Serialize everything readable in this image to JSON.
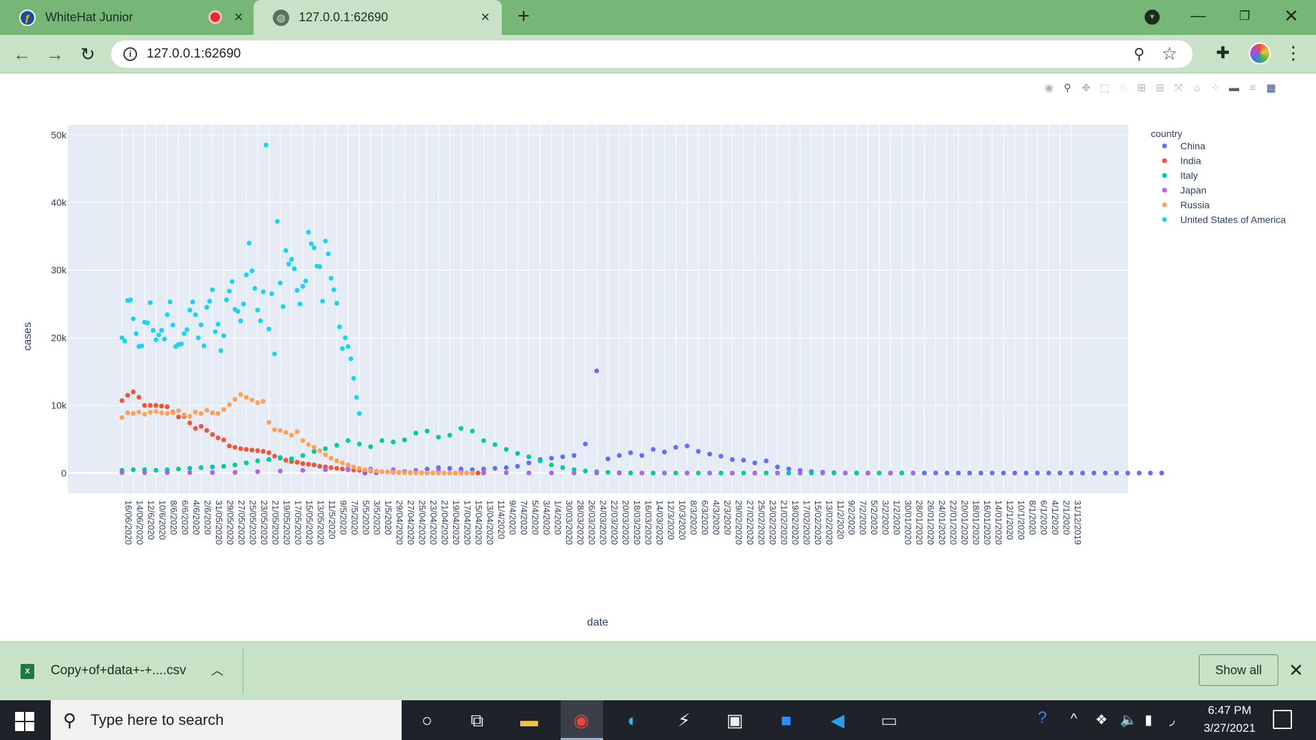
{
  "browser": {
    "tabs": [
      {
        "title": "WhiteHat Junior",
        "favicon": "whitehat-logo-icon",
        "recording": true
      },
      {
        "title": "127.0.0.1:62690",
        "favicon": "globe-icon",
        "active": true
      }
    ],
    "url": "127.0.0.1:62690"
  },
  "download": {
    "file_name": "Copy+of+data+-+....csv",
    "file_icon_text": "X",
    "show_all_label": "Show all"
  },
  "taskbar": {
    "search_placeholder": "Type here to search",
    "time": "6:47 PM",
    "date": "3/27/2021",
    "apps": [
      "cortana-icon",
      "task-view-icon",
      "file-explorer-icon",
      "chrome-icon",
      "edge-icon",
      "app-icon",
      "microsoft-store-icon",
      "zoom-icon",
      "vscode-icon",
      "terminal-icon"
    ]
  },
  "chart_data": {
    "type": "scatter",
    "title": "",
    "xlabel": "date",
    "ylabel": "cases",
    "ylim": [
      -3000,
      51500
    ],
    "yticks": [
      0,
      10000,
      20000,
      30000,
      40000,
      50000
    ],
    "ytick_labels": [
      "0",
      "10k",
      "20k",
      "30k",
      "40k",
      "50k"
    ],
    "legend_title": "country",
    "legend_position": "right",
    "grid": true,
    "background": "#e5ecf6",
    "x_tick_labels": [
      "16/06/2020",
      "14/06/2020",
      "12/6/2020",
      "10/6/2020",
      "8/6/2020",
      "6/6/2020",
      "4/6/2020",
      "2/6/2020",
      "31/05/2020",
      "29/05/2020",
      "27/05/2020",
      "25/05/2020",
      "23/05/2020",
      "21/05/2020",
      "19/05/2020",
      "17/05/2020",
      "15/05/2020",
      "13/05/2020",
      "11/5/2020",
      "9/5/2020",
      "7/5/2020",
      "5/5/2020",
      "3/5/2020",
      "1/5/2020",
      "29/04/2020",
      "27/04/2020",
      "25/04/2020",
      "23/04/2020",
      "21/04/2020",
      "19/04/2020",
      "17/04/2020",
      "15/04/2020",
      "13/04/2020",
      "11/4/2020",
      "9/4/2020",
      "7/4/2020",
      "5/4/2020",
      "3/4/2020",
      "1/4/2020",
      "30/03/2020",
      "28/03/2020",
      "26/03/2020",
      "24/03/2020",
      "22/03/2020",
      "20/03/2020",
      "18/03/2020",
      "16/03/2020",
      "14/03/2020",
      "12/3/2020",
      "10/3/2020",
      "8/3/2020",
      "6/3/2020",
      "4/3/2020",
      "2/3/2020",
      "29/02/2020",
      "27/02/2020",
      "25/02/2020",
      "23/02/2020",
      "21/02/2020",
      "19/02/2020",
      "17/02/2020",
      "15/02/2020",
      "13/02/2020",
      "11/2/2020",
      "9/2/2020",
      "7/2/2020",
      "5/2/2020",
      "3/2/2020",
      "1/2/2020",
      "30/01/2020",
      "28/01/2020",
      "26/01/2020",
      "24/01/2020",
      "22/01/2020",
      "20/01/2020",
      "18/01/2020",
      "16/01/2020",
      "14/01/2020",
      "12/1/2020",
      "10/1/2020",
      "8/1/2020",
      "6/1/2020",
      "4/1/2020",
      "2/1/2020",
      "31/12/2019"
    ],
    "series": [
      {
        "name": "China",
        "color": "#636efa",
        "x": [
          86,
          90,
          96,
          100,
          104,
          108,
          112,
          116,
          120,
          124,
          128,
          132,
          136,
          140,
          144,
          148,
          152,
          156,
          160,
          164,
          168,
          172,
          176,
          180,
          184,
          188,
          192,
          196,
          200,
          204,
          208,
          212,
          216,
          220,
          224,
          228,
          232,
          236,
          240,
          244,
          248,
          252,
          256,
          260,
          264,
          268,
          272,
          276,
          280,
          284,
          288,
          292,
          296,
          300,
          304,
          308,
          312,
          316,
          320,
          324,
          328,
          332,
          336,
          340,
          344,
          348,
          352,
          356,
          360,
          364,
          368
        ],
        "y": [
          0,
          50,
          100,
          200,
          400,
          600,
          800,
          700,
          600,
          500,
          600,
          700,
          800,
          1000,
          1500,
          2000,
          2200,
          2400,
          2600,
          4300,
          15100,
          2100,
          2600,
          3000,
          2600,
          3500,
          3100,
          3800,
          4000,
          3200,
          2800,
          2500,
          2000,
          1900,
          1500,
          1800,
          900,
          600,
          400,
          200,
          100,
          50,
          20,
          0,
          0,
          0,
          0,
          0,
          0,
          0,
          0,
          0,
          0,
          0,
          0,
          0,
          0,
          0,
          0,
          0,
          0,
          0,
          0,
          0,
          0,
          0,
          0,
          0,
          0,
          0,
          0
        ]
      },
      {
        "name": "India",
        "color": "#ef553b",
        "x": [
          0,
          2,
          4,
          6,
          8,
          10,
          12,
          14,
          16,
          18,
          20,
          22,
          24,
          26,
          28,
          30,
          32,
          34,
          36,
          38,
          40,
          42,
          44,
          46,
          48,
          50,
          52,
          54,
          56,
          58,
          60,
          62,
          64,
          66,
          68,
          70,
          72,
          74,
          76,
          78,
          80,
          82,
          84,
          86,
          88,
          90,
          92,
          94,
          96,
          98,
          100,
          102,
          104,
          106,
          108,
          110,
          112,
          114,
          116,
          118,
          120,
          122,
          124,
          126,
          128
        ],
        "y": [
          10700,
          11500,
          12000,
          11200,
          10000,
          10000,
          10000,
          9900,
          9800,
          9000,
          8300,
          8400,
          7400,
          6600,
          6900,
          6300,
          5700,
          5200,
          4900,
          4000,
          3800,
          3600,
          3500,
          3400,
          3300,
          3200,
          3000,
          2500,
          2200,
          1900,
          1700,
          1600,
          1400,
          1300,
          1200,
          1000,
          900,
          800,
          700,
          600,
          500,
          450,
          400,
          350,
          300,
          250,
          200,
          150,
          120,
          100,
          80,
          60,
          50,
          40,
          30,
          20,
          10,
          5,
          0,
          0,
          0,
          0,
          0,
          0,
          0
        ]
      },
      {
        "name": "Italy",
        "color": "#00cc96",
        "x": [
          0,
          4,
          8,
          12,
          16,
          20,
          24,
          28,
          32,
          36,
          40,
          44,
          48,
          52,
          56,
          60,
          64,
          68,
          72,
          76,
          80,
          84,
          88,
          92,
          96,
          100,
          104,
          108,
          112,
          116,
          120,
          124,
          128,
          132,
          136,
          140,
          144,
          148,
          152,
          156,
          160,
          164,
          168,
          172,
          176,
          180,
          184,
          188,
          192,
          196,
          200,
          204,
          208,
          212,
          216,
          220,
          224,
          228,
          232,
          236,
          240,
          244,
          248,
          252,
          256,
          260,
          264,
          268,
          272,
          276,
          280
        ],
        "y": [
          400,
          500,
          500,
          400,
          500,
          600,
          700,
          800,
          900,
          1000,
          1200,
          1500,
          1800,
          2000,
          2300,
          2100,
          2600,
          3200,
          3600,
          4100,
          4800,
          4300,
          3900,
          4800,
          4600,
          4900,
          5900,
          6200,
          5300,
          5600,
          6600,
          6200,
          4800,
          4200,
          3500,
          2900,
          2400,
          1800,
          1200,
          800,
          500,
          300,
          200,
          100,
          50,
          10,
          0,
          0,
          0,
          0,
          0,
          0,
          0,
          0,
          0,
          0,
          0,
          0,
          0,
          0,
          0,
          0,
          0,
          0,
          0,
          0,
          0,
          0,
          0,
          0,
          0
        ]
      },
      {
        "name": "Japan",
        "color": "#ab63fa",
        "x": [
          0,
          8,
          16,
          24,
          32,
          40,
          48,
          56,
          64,
          72,
          80,
          88,
          96,
          104,
          112,
          120,
          128,
          136,
          144,
          152,
          160,
          168,
          176,
          184,
          192,
          200,
          208,
          216,
          224,
          232,
          240,
          248,
          256,
          264,
          272,
          280
        ],
        "y": [
          50,
          60,
          60,
          70,
          80,
          100,
          200,
          300,
          400,
          500,
          600,
          600,
          500,
          400,
          300,
          200,
          100,
          50,
          20,
          10,
          5,
          0,
          0,
          0,
          0,
          0,
          0,
          0,
          0,
          0,
          0,
          0,
          0,
          0,
          0,
          0
        ]
      },
      {
        "name": "Russia",
        "color": "#ffa15a",
        "x": [
          0,
          2,
          4,
          6,
          8,
          10,
          12,
          14,
          16,
          18,
          20,
          22,
          24,
          26,
          28,
          30,
          32,
          34,
          36,
          38,
          40,
          42,
          44,
          46,
          48,
          50,
          52,
          54,
          56,
          58,
          60,
          62,
          64,
          66,
          68,
          70,
          72,
          74,
          76,
          78,
          80,
          82,
          84,
          86,
          88,
          90,
          92,
          94,
          96,
          98,
          100,
          102,
          104,
          106,
          108,
          110,
          112,
          114,
          116,
          118,
          120,
          122,
          124
        ],
        "y": [
          8200,
          8900,
          8800,
          9000,
          8700,
          9000,
          9100,
          8900,
          8800,
          8900,
          9200,
          8600,
          8400,
          9000,
          8800,
          9300,
          8900,
          8800,
          9400,
          10100,
          10900,
          11600,
          11200,
          10800,
          10400,
          10600,
          7500,
          6400,
          6300,
          6000,
          5600,
          6100,
          4800,
          4200,
          3800,
          3300,
          2700,
          2200,
          1800,
          1500,
          1200,
          900,
          700,
          500,
          400,
          300,
          200,
          150,
          100,
          80,
          50,
          30,
          20,
          10,
          0,
          0,
          0,
          0,
          0,
          0,
          0,
          0,
          0
        ]
      },
      {
        "name": "United States of America",
        "color": "#19d3f3",
        "x": [
          0,
          1,
          2,
          3,
          4,
          5,
          6,
          7,
          8,
          9,
          10,
          11,
          12,
          13,
          14,
          15,
          16,
          17,
          18,
          19,
          20,
          21,
          22,
          23,
          24,
          25,
          26,
          27,
          28,
          29,
          30,
          31,
          32,
          33,
          34,
          35,
          36,
          37,
          38,
          39,
          40,
          41,
          42,
          43,
          44,
          45,
          46,
          47,
          48,
          49,
          50,
          51,
          52,
          53,
          54,
          55,
          56,
          57,
          58,
          59,
          60,
          61,
          62,
          63,
          64,
          65,
          66,
          67,
          68,
          69,
          70,
          71,
          72,
          73,
          74,
          75,
          76,
          77,
          78,
          79,
          80,
          81,
          82,
          83,
          84
        ],
        "y": [
          20000,
          19500,
          25500,
          25600,
          22800,
          20600,
          18700,
          18800,
          22300,
          22200,
          25200,
          21100,
          19700,
          20400,
          21100,
          19800,
          23400,
          25300,
          21900,
          18700,
          19000,
          19100,
          20600,
          21200,
          24100,
          25300,
          23400,
          20000,
          21900,
          18800,
          24500,
          25400,
          27100,
          20900,
          22000,
          18100,
          20300,
          25600,
          26900,
          28300,
          24200,
          23900,
          22500,
          25000,
          29300,
          34000,
          29900,
          27300,
          24100,
          22500,
          26800,
          48500,
          21300,
          26500,
          17600,
          37200,
          28100,
          24600,
          32900,
          30900,
          31600,
          30200,
          27000,
          25000,
          27600,
          28400,
          35600,
          33900,
          33300,
          30600,
          30500,
          25400,
          34300,
          32400,
          28800,
          27100,
          25100,
          21600,
          18400,
          20000,
          18700,
          16900,
          14000,
          11200,
          8800
        ]
      }
    ]
  }
}
